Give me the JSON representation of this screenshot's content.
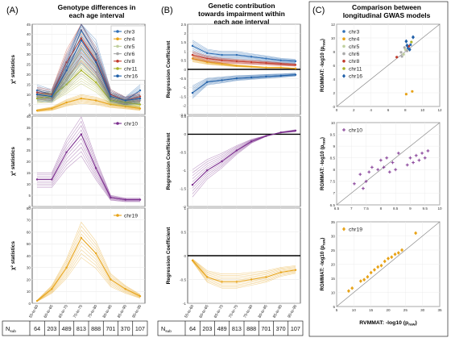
{
  "panels": {
    "A": {
      "letter": "(A)",
      "title_line1": "Genotype differences in",
      "title_line2": "each age interval"
    },
    "B": {
      "letter": "(B)",
      "title_line1": "Genetic contribution",
      "title_line2": "towards impairment within",
      "title_line3": "each age interval"
    },
    "C": {
      "letter": "(C)",
      "title_line1": "Comparison between",
      "title_line2": "longitudinal GWAS models"
    }
  },
  "age_intervals": [
    "55-to-60",
    "60-to-65",
    "65-to-70",
    "70-to-75",
    "75-to-80",
    "80-to-85",
    "85-to-90",
    "90-to-95"
  ],
  "table": {
    "row_label": "N",
    "row_label_sub": "sub",
    "values": [
      "64",
      "203",
      "489",
      "813",
      "888",
      "701",
      "370",
      "107"
    ]
  },
  "colors": {
    "chr3": "#2f6fb6",
    "chr4": "#e8a317",
    "chr5": "#c0d0a0",
    "chr6": "#a8a8a8",
    "chr8": "#c0392b",
    "chr11": "#a9b42a",
    "chr16": "#1f5fa8",
    "chr10": "#7b2d8e",
    "chr19": "#e8a317",
    "ref": "#000000",
    "diag": "#888888"
  },
  "chart_data": [
    {
      "id": "A-top",
      "type": "line",
      "ylabel": "χ² statistics",
      "ylim": [
        0,
        45
      ],
      "yticks": [
        "0",
        "5",
        "10",
        "15",
        "20",
        "25",
        "30",
        "35",
        "40",
        "45"
      ],
      "legend": [
        "chr3",
        "chr4",
        "chr5",
        "chr6",
        "chr8",
        "chr11",
        "chr16"
      ],
      "series": [
        {
          "name": "chr3",
          "values": [
            12,
            10,
            24,
            42,
            30,
            10,
            7,
            12
          ]
        },
        {
          "name": "chr4",
          "values": [
            2,
            3,
            6,
            8,
            7,
            5,
            4,
            3
          ]
        },
        {
          "name": "chr5",
          "values": [
            10,
            9,
            20,
            33,
            24,
            9,
            6,
            8
          ]
        },
        {
          "name": "chr6",
          "values": [
            9,
            8,
            17,
            29,
            21,
            8,
            6,
            7
          ]
        },
        {
          "name": "chr8",
          "values": [
            11,
            10,
            26,
            38,
            27,
            10,
            7,
            9
          ]
        },
        {
          "name": "chr11",
          "values": [
            8,
            9,
            15,
            22,
            16,
            7,
            6,
            5
          ]
        },
        {
          "name": "chr16",
          "values": [
            10,
            9,
            22,
            37,
            26,
            9,
            7,
            8
          ]
        }
      ]
    },
    {
      "id": "A-mid",
      "type": "line",
      "ylabel": "χ² statistics",
      "ylim": [
        0,
        40
      ],
      "yticks": [
        "0",
        "5",
        "10",
        "15",
        "20",
        "25",
        "30",
        "35",
        "40"
      ],
      "legend": [
        "chr10"
      ],
      "series": [
        {
          "name": "chr10",
          "values": [
            12,
            12,
            24,
            32,
            17,
            4,
            3,
            3
          ]
        }
      ]
    },
    {
      "id": "A-bot",
      "type": "line",
      "ylabel": "χ² statistics",
      "ylim": [
        0,
        80
      ],
      "yticks": [
        "0",
        "10",
        "20",
        "30",
        "40",
        "50",
        "60",
        "70",
        "80"
      ],
      "legend": [
        "chr19"
      ],
      "series": [
        {
          "name": "chr19",
          "values": [
            2,
            12,
            30,
            55,
            42,
            20,
            12,
            6
          ]
        }
      ]
    },
    {
      "id": "B-top",
      "type": "line",
      "ylabel": "Regression Coefficient",
      "ylim": [
        -2.5,
        2.5
      ],
      "yticks": [
        "-2.5",
        "-2",
        "-1.5",
        "-1",
        "-0.5",
        "0",
        "0.5",
        "1",
        "1.5",
        "2",
        "2.5"
      ],
      "series": [
        {
          "name": "chr3",
          "values": [
            1.3,
            0.9,
            0.8,
            0.8,
            0.7,
            0.6,
            0.5,
            0.45
          ]
        },
        {
          "name": "chr4",
          "values": [
            0.6,
            0.4,
            0.3,
            0.2,
            0.15,
            0.1,
            0.1,
            0.05
          ]
        },
        {
          "name": "chr16",
          "values": [
            -1.3,
            -0.7,
            -0.6,
            -0.5,
            -0.45,
            -0.4,
            -0.35,
            -0.3
          ]
        },
        {
          "name": "chr8",
          "values": [
            0.8,
            0.6,
            0.5,
            0.45,
            0.4,
            0.35,
            0.3,
            0.25
          ]
        }
      ]
    },
    {
      "id": "B-mid",
      "type": "line",
      "ylabel": "Regression Coefficient",
      "ylim": [
        -2,
        0.5
      ],
      "yticks": [
        "-2",
        "-1.5",
        "-1",
        "-0.5",
        "0",
        "0.5"
      ],
      "series": [
        {
          "name": "chr10",
          "values": [
            -1.4,
            -1.0,
            -0.75,
            -0.45,
            -0.2,
            -0.05,
            0.05,
            0.1
          ]
        }
      ]
    },
    {
      "id": "B-bot",
      "type": "line",
      "ylabel": "Regression Coefficient",
      "ylim": [
        -1,
        1
      ],
      "yticks": [
        "-1",
        "-0.5",
        "0",
        "0.5",
        "1"
      ],
      "series": [
        {
          "name": "chr19",
          "values": [
            -0.1,
            -0.45,
            -0.55,
            -0.55,
            -0.5,
            -0.45,
            -0.35,
            -0.3
          ]
        }
      ]
    },
    {
      "id": "C-top",
      "type": "scatter",
      "ylabel": "RGMMAT: -log10 (p",
      "ylabel_sub": "raw",
      "ylabel_end": ")",
      "xlim": [
        0,
        12
      ],
      "ylim": [
        0,
        12
      ],
      "xticks": [
        "0",
        "2",
        "4",
        "6",
        "8",
        "10",
        "12"
      ],
      "yticks": [
        "0",
        "2",
        "4",
        "6",
        "8",
        "10",
        "12"
      ],
      "legend": [
        "chr3",
        "chr4",
        "chr5",
        "chr6",
        "chr8",
        "chr11",
        "chr16"
      ],
      "points": [
        {
          "name": "chr3",
          "x": 8.3,
          "y": 8.5
        },
        {
          "name": "chr3",
          "x": 8.6,
          "y": 9.0
        },
        {
          "name": "chr4",
          "x": 8.8,
          "y": 2.2
        },
        {
          "name": "chr4",
          "x": 8.1,
          "y": 1.8
        },
        {
          "name": "chr5",
          "x": 7.8,
          "y": 7.6
        },
        {
          "name": "chr5",
          "x": 8.0,
          "y": 8.3
        },
        {
          "name": "chr6",
          "x": 7.5,
          "y": 7.9
        },
        {
          "name": "chr6",
          "x": 7.9,
          "y": 8.6
        },
        {
          "name": "chr6",
          "x": 8.2,
          "y": 8.1
        },
        {
          "name": "chr6",
          "x": 7.6,
          "y": 7.3
        },
        {
          "name": "chr8",
          "x": 7.0,
          "y": 7.2
        },
        {
          "name": "chr8",
          "x": 8.4,
          "y": 8.8
        },
        {
          "name": "chr11",
          "x": 8.7,
          "y": 9.4
        },
        {
          "name": "chr16",
          "x": 8.1,
          "y": 9.5
        },
        {
          "name": "chr16",
          "x": 8.5,
          "y": 8.3
        },
        {
          "name": "chr16",
          "x": 8.9,
          "y": 10.1
        },
        {
          "name": "chr16",
          "x": 8.2,
          "y": 8.9
        }
      ]
    },
    {
      "id": "C-mid",
      "type": "scatter",
      "ylabel": "RGMMAT: -log10 (p",
      "ylabel_sub": "raw",
      "ylabel_end": ")",
      "xlim": [
        6.5,
        10
      ],
      "ylim": [
        6.5,
        10
      ],
      "xticks": [
        "6.5",
        "7",
        "7.5",
        "8",
        "8.5",
        "9",
        "9.5",
        "10"
      ],
      "yticks": [
        "6.5",
        "7",
        "7.5",
        "8",
        "8.5",
        "9",
        "9.5",
        "10"
      ],
      "legend": [
        "chr10"
      ],
      "points": [
        {
          "name": "chr10",
          "x": 7.1,
          "y": 7.4
        },
        {
          "name": "chr10",
          "x": 7.3,
          "y": 7.8
        },
        {
          "name": "chr10",
          "x": 7.5,
          "y": 7.5
        },
        {
          "name": "chr10",
          "x": 7.6,
          "y": 7.9
        },
        {
          "name": "chr10",
          "x": 7.7,
          "y": 8.1
        },
        {
          "name": "chr10",
          "x": 7.9,
          "y": 8.0
        },
        {
          "name": "chr10",
          "x": 8.0,
          "y": 8.4
        },
        {
          "name": "chr10",
          "x": 8.1,
          "y": 8.1
        },
        {
          "name": "chr10",
          "x": 8.2,
          "y": 8.5
        },
        {
          "name": "chr10",
          "x": 8.4,
          "y": 8.3
        },
        {
          "name": "chr10",
          "x": 8.5,
          "y": 8.0
        },
        {
          "name": "chr10",
          "x": 8.6,
          "y": 8.7
        },
        {
          "name": "chr10",
          "x": 8.9,
          "y": 8.2
        },
        {
          "name": "chr10",
          "x": 9.0,
          "y": 8.5
        },
        {
          "name": "chr10",
          "x": 9.1,
          "y": 8.3
        },
        {
          "name": "chr10",
          "x": 9.2,
          "y": 8.6
        },
        {
          "name": "chr10",
          "x": 9.3,
          "y": 8.4
        },
        {
          "name": "chr10",
          "x": 9.4,
          "y": 8.7
        },
        {
          "name": "chr10",
          "x": 9.5,
          "y": 8.5
        },
        {
          "name": "chr10",
          "x": 9.6,
          "y": 8.8
        },
        {
          "name": "chr10",
          "x": 7.4,
          "y": 7.2
        },
        {
          "name": "chr10",
          "x": 8.3,
          "y": 7.9
        }
      ]
    },
    {
      "id": "C-bot",
      "type": "scatter",
      "ylabel": "RGMMAT: -log10 (p",
      "ylabel_sub": "raw",
      "ylabel_end": ")",
      "xlabel": "RVMMAT: -log10 (p",
      "xlabel_sub": "raw",
      "xlabel_end": ")",
      "xlim": [
        5,
        35
      ],
      "ylim": [
        5,
        35
      ],
      "xticks": [
        "5",
        "10",
        "15",
        "20",
        "25",
        "30",
        "35"
      ],
      "yticks": [
        "5",
        "10",
        "15",
        "20",
        "25",
        "30",
        "35"
      ],
      "legend": [
        "chr19"
      ],
      "points": [
        {
          "name": "chr19",
          "x": 8.5,
          "y": 10.5
        },
        {
          "name": "chr19",
          "x": 9.5,
          "y": 11.5
        },
        {
          "name": "chr19",
          "x": 12,
          "y": 14
        },
        {
          "name": "chr19",
          "x": 13,
          "y": 14.5
        },
        {
          "name": "chr19",
          "x": 14,
          "y": 15.5
        },
        {
          "name": "chr19",
          "x": 15,
          "y": 17
        },
        {
          "name": "chr19",
          "x": 16,
          "y": 18
        },
        {
          "name": "chr19",
          "x": 17,
          "y": 19
        },
        {
          "name": "chr19",
          "x": 18,
          "y": 19.5
        },
        {
          "name": "chr19",
          "x": 19,
          "y": 21
        },
        {
          "name": "chr19",
          "x": 20,
          "y": 22
        },
        {
          "name": "chr19",
          "x": 21,
          "y": 22.5
        },
        {
          "name": "chr19",
          "x": 22,
          "y": 23.5
        },
        {
          "name": "chr19",
          "x": 23,
          "y": 24
        },
        {
          "name": "chr19",
          "x": 24,
          "y": 25
        },
        {
          "name": "chr19",
          "x": 28,
          "y": 31
        }
      ]
    }
  ]
}
